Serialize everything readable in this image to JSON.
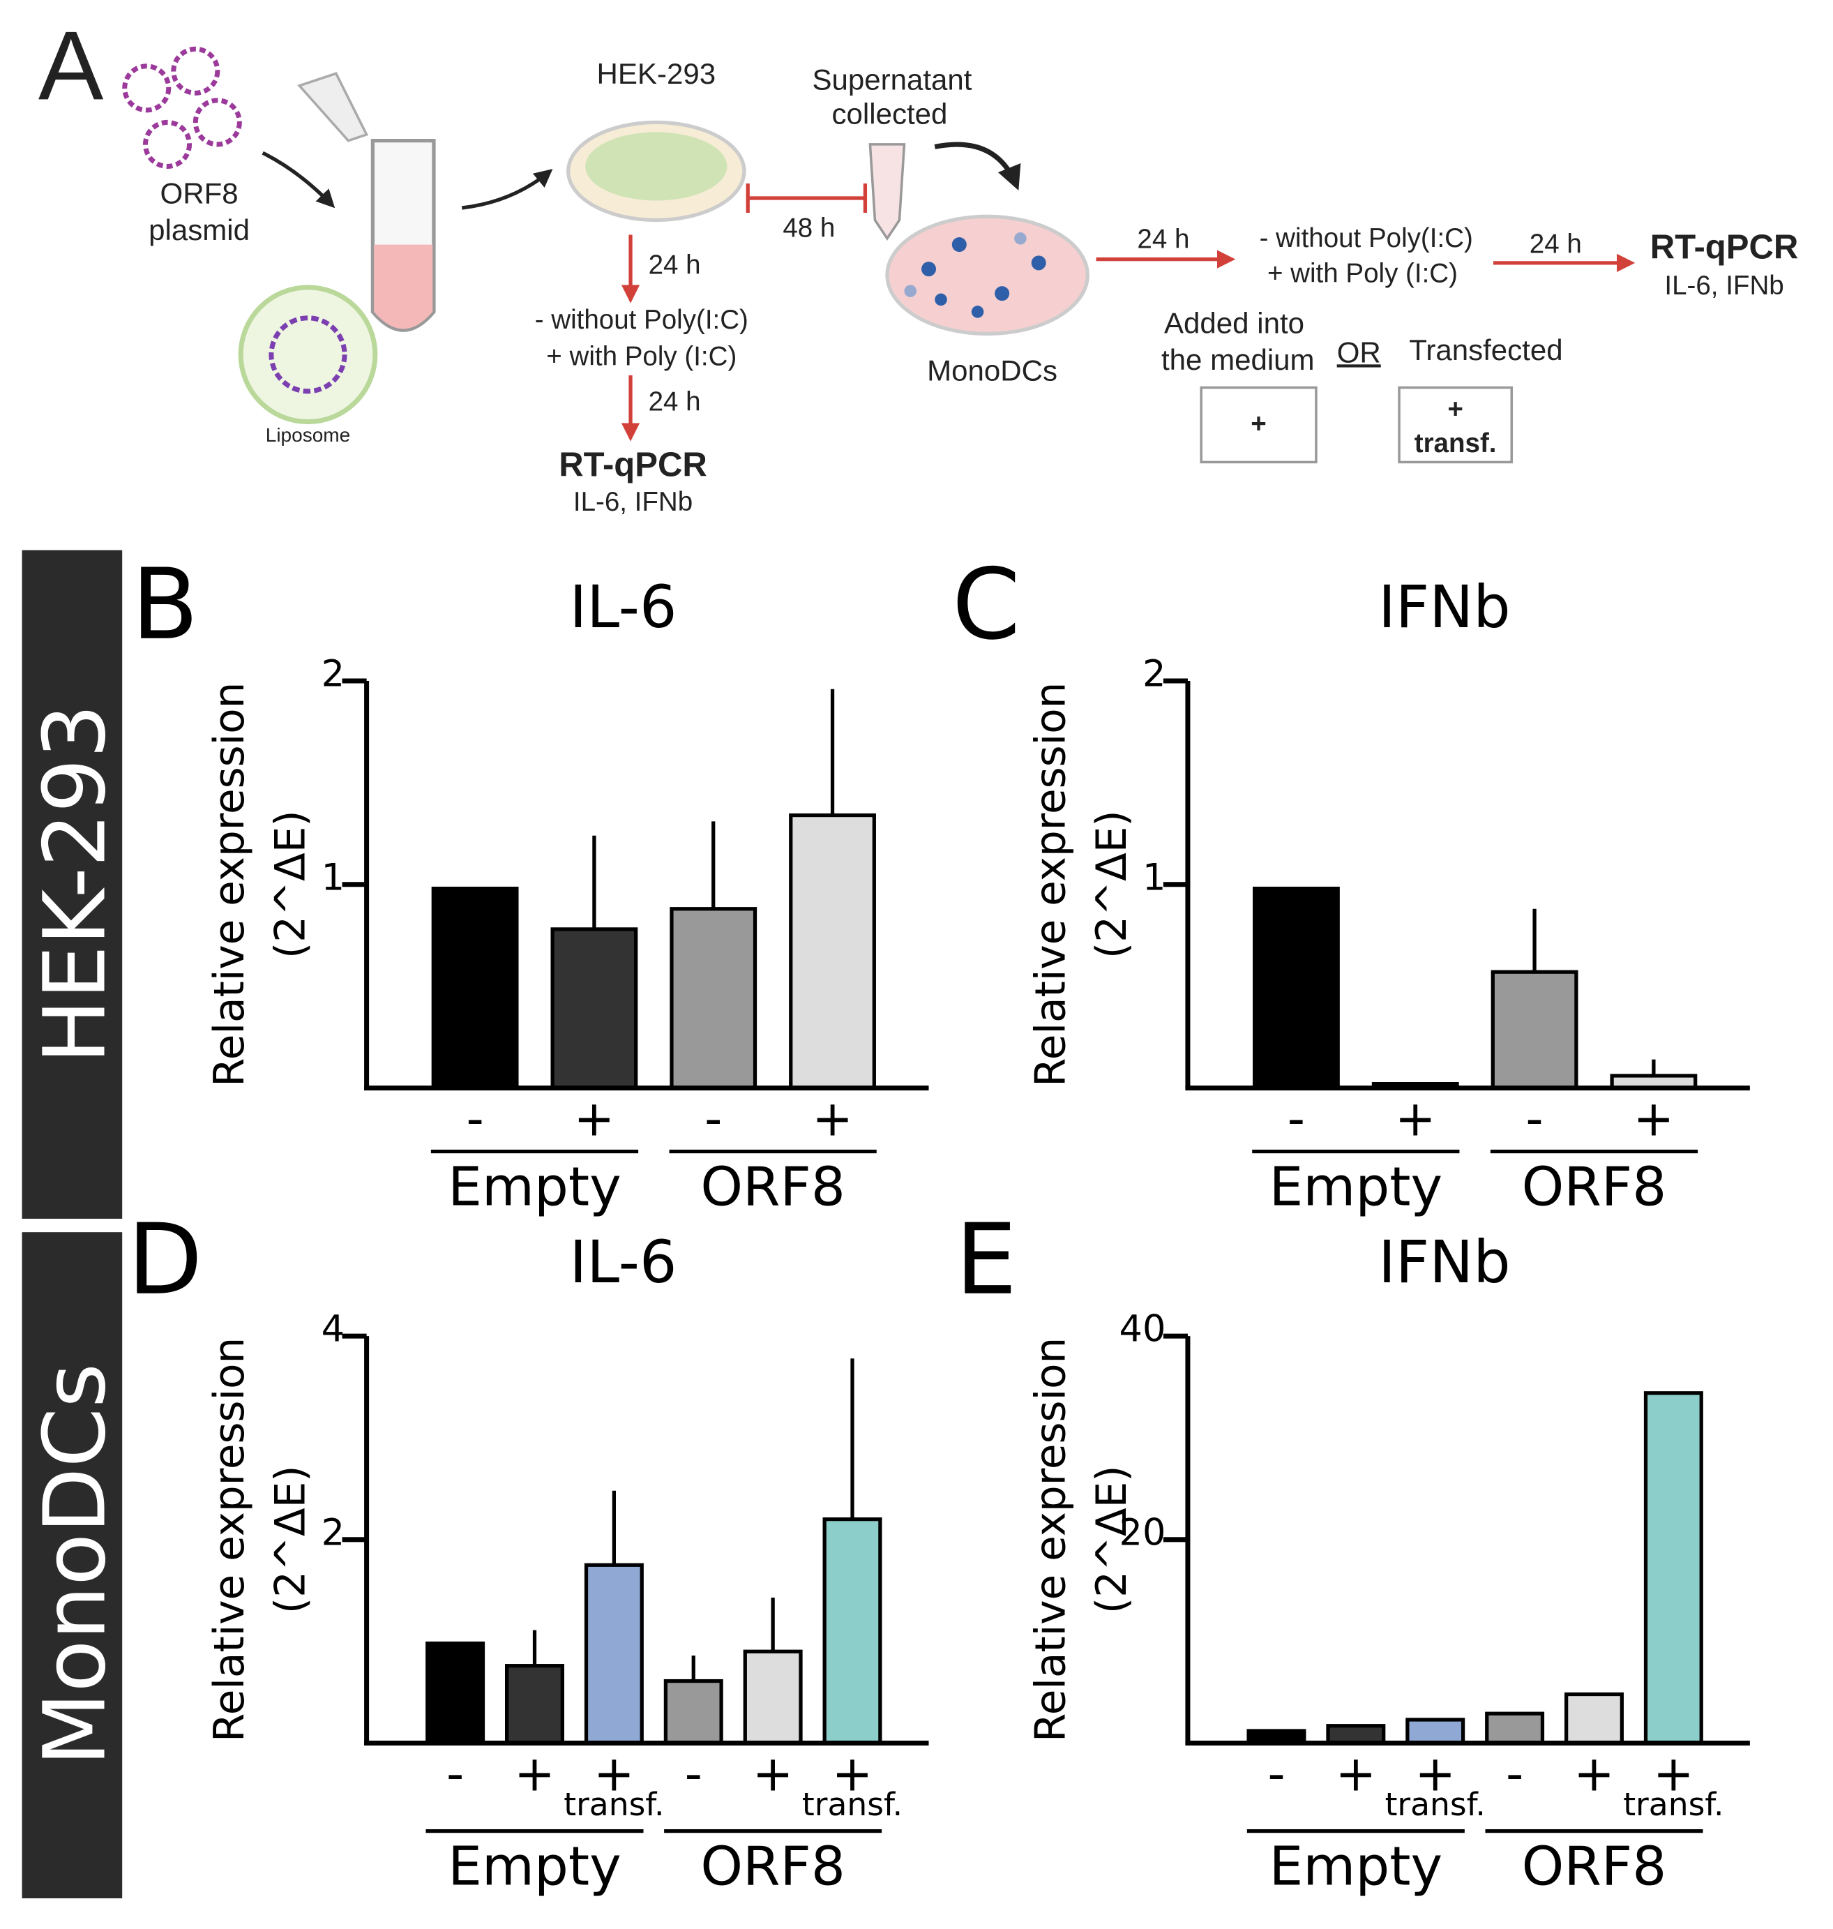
{
  "diagram": {
    "panel": "A",
    "plasmid": [
      "ORF8",
      "plasmid"
    ],
    "liposome": "Liposome",
    "cells": "HEK-293",
    "supernatant": [
      "Supernatant",
      "collected"
    ],
    "wait": "48 h",
    "hek_steps": [
      "24 h",
      "- without Poly(I:C)",
      "+ with Poly (I:C)",
      "24 h"
    ],
    "readout": [
      "RT-qPCR",
      "IL-6, IFNb"
    ],
    "monodcs": "MonoDCs",
    "dc_steps": [
      "24 h",
      "- without Poly(I:C)",
      "+ with Poly (I:C)",
      "24 h"
    ],
    "dc_readout": [
      "RT-qPCR",
      "IL-6, IFNb"
    ],
    "modes": [
      "Added into",
      "the medium",
      "OR",
      "Transfected"
    ],
    "boxes": [
      "+",
      "+",
      "transf."
    ]
  },
  "rows": [
    "HEK-293",
    "MonoDCs"
  ],
  "chart_data": [
    {
      "type": "bar",
      "panel": "B",
      "title": "IL-6",
      "ylabel": [
        "Relative expression",
        "(2^ΔE)"
      ],
      "categories": [
        "-",
        "+",
        "-",
        "+"
      ],
      "groups": [
        "Empty",
        "ORF8"
      ],
      "values": [
        0.98,
        0.78,
        0.88,
        1.34
      ],
      "errors": [
        0,
        0.46,
        0.43,
        0.62
      ],
      "colors": [
        "#000000",
        "#333333",
        "#999999",
        "#dddddd"
      ],
      "ylim": [
        0,
        2
      ],
      "yticks": [
        1,
        2
      ]
    },
    {
      "type": "bar",
      "panel": "C",
      "title": "IFNb",
      "ylabel": [
        "Relative expression",
        "(2^ΔE)"
      ],
      "categories": [
        "-",
        "+",
        "-",
        "+"
      ],
      "groups": [
        "Empty",
        "ORF8"
      ],
      "values": [
        0.98,
        0.02,
        0.57,
        0.06
      ],
      "errors": [
        0,
        0,
        0.31,
        0.08
      ],
      "colors": [
        "#000000",
        "#333333",
        "#999999",
        "#dddddd"
      ],
      "ylim": [
        0,
        2
      ],
      "yticks": [
        1,
        2
      ]
    },
    {
      "type": "bar",
      "panel": "D",
      "title": "IL-6",
      "ylabel": [
        "Relative expression",
        "(2^ΔE)"
      ],
      "categories": [
        "-",
        "+",
        "+",
        "-",
        "+",
        "+"
      ],
      "sublabels": [
        null,
        null,
        "transf.",
        null,
        null,
        "transf."
      ],
      "groups": [
        "Empty",
        "ORF8"
      ],
      "values": [
        0.98,
        0.76,
        1.75,
        0.61,
        0.9,
        2.2
      ],
      "errors": [
        0,
        0.35,
        0.73,
        0.25,
        0.53,
        1.58
      ],
      "colors": [
        "#000000",
        "#333333",
        "#8fa8d4",
        "#999999",
        "#dddddd",
        "#8ccfca"
      ],
      "ylim": [
        0,
        4
      ],
      "yticks": [
        2,
        4
      ]
    },
    {
      "type": "bar",
      "panel": "E",
      "title": "IFNb",
      "ylabel": [
        "Relative expression",
        "(2^ΔE)"
      ],
      "categories": [
        "-",
        "+",
        "+",
        "-",
        "+",
        "+"
      ],
      "sublabels": [
        null,
        null,
        "transf.",
        null,
        null,
        "transf."
      ],
      "groups": [
        "Empty",
        "ORF8"
      ],
      "values": [
        1.2,
        1.7,
        2.3,
        2.9,
        4.8,
        34.4
      ],
      "colors": [
        "#000000",
        "#333333",
        "#8fa8d4",
        "#999999",
        "#dddddd",
        "#8ccfca"
      ],
      "ylim": [
        0,
        40
      ],
      "yticks": [
        20,
        40
      ]
    }
  ]
}
